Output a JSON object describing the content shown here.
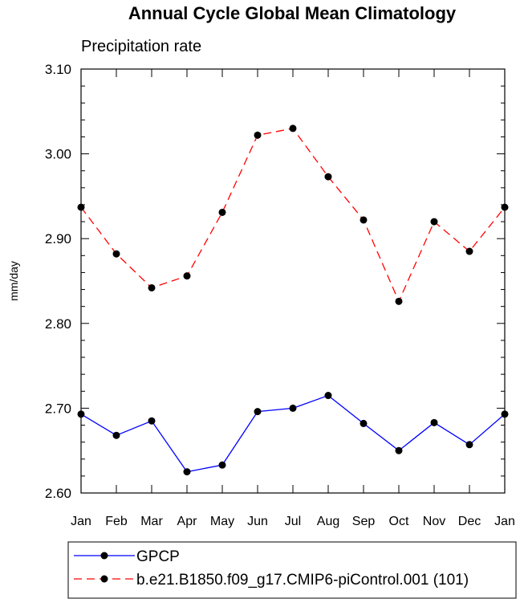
{
  "chart_data": {
    "type": "line",
    "title": "Annual Cycle Global Mean Climatology",
    "subtitle": "Precipitation rate",
    "y_label": "mm/day",
    "categories": [
      "Jan",
      "Feb",
      "Mar",
      "Apr",
      "May",
      "Jun",
      "Jul",
      "Aug",
      "Sep",
      "Oct",
      "Nov",
      "Dec",
      "Jan"
    ],
    "series": [
      {
        "name": "GPCP",
        "color": "#0000ff",
        "dash": "solid",
        "values": [
          2.693,
          2.668,
          2.685,
          2.625,
          2.633,
          2.696,
          2.7,
          2.715,
          2.682,
          2.65,
          2.683,
          2.657,
          2.693
        ]
      },
      {
        "name": "b.e21.B1850.f09_g17.CMIP6-piControl.001 (101)",
        "color": "#ff0000",
        "dash": "dashed",
        "values": [
          2.937,
          2.882,
          2.842,
          2.856,
          2.931,
          3.022,
          3.03,
          2.973,
          2.922,
          2.826,
          2.92,
          2.885,
          2.937
        ]
      }
    ],
    "ylim": [
      2.6,
      3.1
    ],
    "yticks": [
      {
        "value": 2.6,
        "label": "2.60"
      },
      {
        "value": 2.7,
        "label": "2.70"
      },
      {
        "value": 2.8,
        "label": "2.80"
      },
      {
        "value": 2.9,
        "label": "2.90"
      },
      {
        "value": 3.0,
        "label": "3.00"
      },
      {
        "value": 3.1,
        "label": "3.10"
      }
    ],
    "yminorticks": [
      2.62,
      2.64,
      2.66,
      2.68,
      2.72,
      2.74,
      2.76,
      2.78,
      2.82,
      2.84,
      2.86,
      2.88,
      2.92,
      2.94,
      2.96,
      2.98,
      3.02,
      3.04,
      3.06,
      3.08
    ],
    "grid": false,
    "legend": "bottom"
  }
}
